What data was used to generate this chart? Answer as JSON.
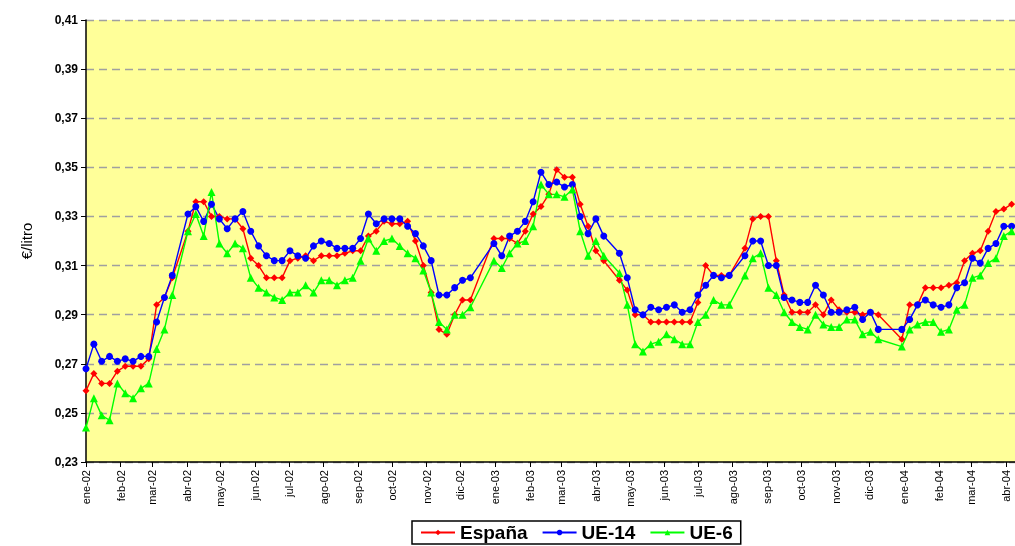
{
  "chart_data": {
    "type": "line",
    "ylabel": "€/litro",
    "legend": "bottom",
    "grid": "y",
    "line_style": "solid",
    "xlim": [
      "2002-01-01",
      "2004-04-09"
    ],
    "xticks": [
      {
        "value": "2002-01-01",
        "label": "ene-02"
      },
      {
        "value": "2002-02-01",
        "label": "feb-02"
      },
      {
        "value": "2002-03-01",
        "label": "mar-02"
      },
      {
        "value": "2002-04-01",
        "label": "abr-02"
      },
      {
        "value": "2002-05-01",
        "label": "may-02"
      },
      {
        "value": "2002-06-01",
        "label": "jun-02"
      },
      {
        "value": "2002-07-01",
        "label": "jul-02"
      },
      {
        "value": "2002-08-01",
        "label": "ago-02"
      },
      {
        "value": "2002-09-01",
        "label": "sep-02"
      },
      {
        "value": "2002-10-01",
        "label": "oct-02"
      },
      {
        "value": "2002-11-01",
        "label": "nov-02"
      },
      {
        "value": "2002-12-01",
        "label": "dic-02"
      },
      {
        "value": "2003-01-01",
        "label": "ene-03"
      },
      {
        "value": "2003-02-01",
        "label": "feb-03"
      },
      {
        "value": "2003-03-01",
        "label": "mar-03"
      },
      {
        "value": "2003-04-01",
        "label": "abr-03"
      },
      {
        "value": "2003-05-01",
        "label": "may-03"
      },
      {
        "value": "2003-06-01",
        "label": "jun-03"
      },
      {
        "value": "2003-07-01",
        "label": "jul-03"
      },
      {
        "value": "2003-08-01",
        "label": "ago-03"
      },
      {
        "value": "2003-09-01",
        "label": "sep-03"
      },
      {
        "value": "2003-10-01",
        "label": "oct-03"
      },
      {
        "value": "2003-11-01",
        "label": "nov-03"
      },
      {
        "value": "2003-12-01",
        "label": "dic-03"
      },
      {
        "value": "2004-01-01",
        "label": "ene-04"
      },
      {
        "value": "2004-02-01",
        "label": "feb-04"
      },
      {
        "value": "2004-03-01",
        "label": "mar-04"
      },
      {
        "value": "2004-04-01",
        "label": "abr-04"
      }
    ],
    "ylim": [
      0.23,
      0.41
    ],
    "yticks": [
      {
        "value": 0.23,
        "label": "0,23"
      },
      {
        "value": 0.25,
        "label": "0,25"
      },
      {
        "value": 0.27,
        "label": "0,27"
      },
      {
        "value": 0.29,
        "label": "0,29"
      },
      {
        "value": 0.31,
        "label": "0,31"
      },
      {
        "value": 0.33,
        "label": "0,33"
      },
      {
        "value": 0.35,
        "label": "0,35"
      },
      {
        "value": 0.37,
        "label": "0,37"
      },
      {
        "value": 0.39,
        "label": "0,39"
      },
      {
        "value": 0.41,
        "label": "0,41"
      }
    ],
    "x": [
      "2002-01-01",
      "2002-01-08",
      "2002-01-15",
      "2002-01-22",
      "2002-01-29",
      "2002-02-05",
      "2002-02-12",
      "2002-02-19",
      "2002-02-26",
      "2002-03-05",
      "2002-03-12",
      "2002-03-19",
      "2002-04-02",
      "2002-04-09",
      "2002-04-16",
      "2002-04-23",
      "2002-04-30",
      "2002-05-07",
      "2002-05-14",
      "2002-05-21",
      "2002-05-28",
      "2002-06-04",
      "2002-06-11",
      "2002-06-18",
      "2002-06-25",
      "2002-07-02",
      "2002-07-09",
      "2002-07-16",
      "2002-07-23",
      "2002-07-30",
      "2002-08-06",
      "2002-08-13",
      "2002-08-20",
      "2002-08-27",
      "2002-09-03",
      "2002-09-10",
      "2002-09-17",
      "2002-09-24",
      "2002-10-01",
      "2002-10-08",
      "2002-10-15",
      "2002-10-22",
      "2002-10-29",
      "2002-11-05",
      "2002-11-12",
      "2002-11-19",
      "2002-11-26",
      "2002-12-03",
      "2002-12-10",
      "2002-12-31",
      "2003-01-07",
      "2003-01-14",
      "2003-01-21",
      "2003-01-28",
      "2003-02-04",
      "2003-02-11",
      "2003-02-18",
      "2003-02-25",
      "2003-03-04",
      "2003-03-11",
      "2003-03-18",
      "2003-03-25",
      "2003-04-01",
      "2003-04-08",
      "2003-04-22",
      "2003-04-29",
      "2003-05-06",
      "2003-05-13",
      "2003-05-20",
      "2003-05-27",
      "2003-06-03",
      "2003-06-10",
      "2003-06-17",
      "2003-06-24",
      "2003-07-01",
      "2003-07-08",
      "2003-07-15",
      "2003-07-22",
      "2003-07-29",
      "2003-08-12",
      "2003-08-19",
      "2003-08-26",
      "2003-09-02",
      "2003-09-09",
      "2003-09-16",
      "2003-09-23",
      "2003-09-30",
      "2003-10-07",
      "2003-10-14",
      "2003-10-21",
      "2003-10-28",
      "2003-11-04",
      "2003-11-11",
      "2003-11-18",
      "2003-11-25",
      "2003-12-02",
      "2003-12-09",
      "2003-12-30",
      "2004-01-06",
      "2004-01-13",
      "2004-01-20",
      "2004-01-27",
      "2004-02-03",
      "2004-02-10",
      "2004-02-17",
      "2004-02-24",
      "2004-03-02",
      "2004-03-09",
      "2004-03-16",
      "2004-03-23",
      "2004-03-30",
      "2004-04-06"
    ],
    "series": [
      {
        "name": "España",
        "color": "#ff0000",
        "marker": "diamond",
        "values": [
          0.259,
          0.266,
          0.262,
          0.262,
          0.267,
          0.269,
          0.269,
          0.269,
          0.272,
          0.294,
          0.297,
          0.305,
          0.324,
          0.336,
          0.336,
          0.33,
          0.33,
          0.329,
          0.329,
          0.325,
          0.313,
          0.31,
          0.305,
          0.305,
          0.305,
          0.312,
          0.313,
          0.314,
          0.312,
          0.314,
          0.314,
          0.314,
          0.315,
          0.316,
          0.316,
          0.322,
          0.324,
          0.328,
          0.327,
          0.327,
          0.328,
          0.32,
          0.31,
          0.299,
          0.284,
          0.282,
          0.29,
          0.296,
          0.296,
          0.321,
          0.321,
          0.321,
          0.319,
          0.324,
          0.331,
          0.334,
          0.339,
          0.349,
          0.346,
          0.346,
          0.335,
          0.326,
          0.316,
          0.312,
          0.304,
          0.3,
          0.29,
          0.29,
          0.287,
          0.287,
          0.287,
          0.287,
          0.287,
          0.287,
          0.295,
          0.31,
          0.306,
          0.306,
          0.306,
          0.317,
          0.329,
          0.33,
          0.33,
          0.312,
          0.298,
          0.291,
          0.291,
          0.291,
          0.294,
          0.29,
          0.296,
          0.292,
          0.291,
          0.291,
          0.29,
          0.291,
          0.29,
          0.28,
          0.294,
          0.294,
          0.301,
          0.301,
          0.301,
          0.302,
          0.303,
          0.312,
          0.315,
          0.316,
          0.324,
          0.332,
          0.333,
          0.335
        ]
      },
      {
        "name": "UE-14",
        "color": "#0000ff",
        "marker": "circle",
        "values": [
          0.268,
          0.278,
          0.271,
          0.273,
          0.271,
          0.272,
          0.271,
          0.273,
          0.273,
          0.287,
          0.297,
          0.306,
          0.331,
          0.334,
          0.328,
          0.335,
          0.329,
          0.325,
          0.329,
          0.332,
          0.324,
          0.318,
          0.314,
          0.312,
          0.312,
          0.316,
          0.314,
          0.313,
          0.318,
          0.32,
          0.319,
          0.317,
          0.317,
          0.317,
          0.321,
          0.331,
          0.327,
          0.329,
          0.329,
          0.329,
          0.326,
          0.323,
          0.318,
          0.312,
          0.298,
          0.298,
          0.301,
          0.304,
          0.305,
          0.319,
          0.314,
          0.322,
          0.324,
          0.328,
          0.336,
          0.348,
          0.343,
          0.344,
          0.342,
          0.343,
          0.33,
          0.323,
          0.329,
          0.322,
          0.315,
          0.305,
          0.292,
          0.29,
          0.293,
          0.292,
          0.293,
          0.294,
          0.291,
          0.292,
          0.298,
          0.302,
          0.306,
          0.305,
          0.306,
          0.314,
          0.32,
          0.32,
          0.31,
          0.31,
          0.297,
          0.296,
          0.295,
          0.295,
          0.302,
          0.298,
          0.291,
          0.291,
          0.292,
          0.293,
          0.288,
          0.291,
          0.284,
          0.284,
          0.288,
          0.294,
          0.296,
          0.294,
          0.293,
          0.294,
          0.301,
          0.303,
          0.313,
          0.311,
          0.317,
          0.319,
          0.326,
          0.326
        ]
      },
      {
        "name": "UE-6",
        "color": "#00ff00",
        "marker": "triangle",
        "values": [
          0.244,
          0.256,
          0.249,
          0.247,
          0.262,
          0.258,
          0.256,
          0.26,
          0.262,
          0.276,
          0.284,
          0.298,
          0.324,
          0.331,
          0.322,
          0.34,
          0.319,
          0.315,
          0.319,
          0.317,
          0.305,
          0.301,
          0.299,
          0.297,
          0.296,
          0.299,
          0.299,
          0.302,
          0.299,
          0.304,
          0.304,
          0.302,
          0.304,
          0.305,
          0.312,
          0.321,
          0.316,
          0.32,
          0.321,
          0.318,
          0.315,
          0.313,
          0.308,
          0.299,
          0.287,
          0.284,
          0.29,
          0.29,
          0.293,
          0.312,
          0.309,
          0.315,
          0.319,
          0.32,
          0.326,
          0.343,
          0.339,
          0.339,
          0.338,
          0.341,
          0.324,
          0.314,
          0.32,
          0.314,
          0.307,
          0.294,
          0.278,
          0.275,
          0.278,
          0.279,
          0.282,
          0.28,
          0.278,
          0.278,
          0.287,
          0.29,
          0.296,
          0.294,
          0.294,
          0.306,
          0.313,
          0.315,
          0.301,
          0.298,
          0.291,
          0.287,
          0.285,
          0.284,
          0.29,
          0.286,
          0.285,
          0.285,
          0.288,
          0.288,
          0.282,
          0.283,
          0.28,
          0.277,
          0.284,
          0.286,
          0.287,
          0.287,
          0.283,
          0.284,
          0.292,
          0.294,
          0.305,
          0.306,
          0.311,
          0.313,
          0.322,
          0.324
        ]
      }
    ]
  }
}
